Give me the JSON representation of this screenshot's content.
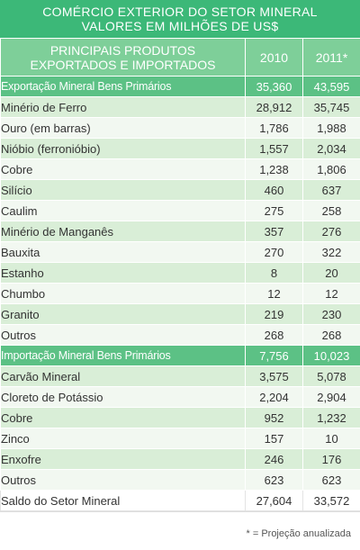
{
  "title": {
    "line1": "COMÉRCIO EXTERIOR DO SETOR MINERAL",
    "line2": "VALORES EM MILHÕES DE US$"
  },
  "header": {
    "product_line1": "PRINCIPAIS PRODUTOS",
    "product_line2": "EXPORTADOS E IMPORTADOS",
    "col1": "2010",
    "col2": "2011*"
  },
  "rows": [
    {
      "name": "Exportação Mineral Bens Primários",
      "v2010": "35,360",
      "v2011": "43,595",
      "kind": "section"
    },
    {
      "name": "Minério de Ferro",
      "v2010": "28,912",
      "v2011": "35,745",
      "kind": "mid"
    },
    {
      "name": "Ouro (em barras)",
      "v2010": "1,786",
      "v2011": "1,988",
      "kind": "light"
    },
    {
      "name": "Nióbio (ferronióbio)",
      "v2010": "1,557",
      "v2011": "2,034",
      "kind": "mid"
    },
    {
      "name": "Cobre",
      "v2010": "1,238",
      "v2011": "1,806",
      "kind": "light"
    },
    {
      "name": "Silício",
      "v2010": "460",
      "v2011": "637",
      "kind": "mid"
    },
    {
      "name": "Caulim",
      "v2010": "275",
      "v2011": "258",
      "kind": "light"
    },
    {
      "name": "Minério de Manganês",
      "v2010": "357",
      "v2011": "276",
      "kind": "mid"
    },
    {
      "name": "Bauxita",
      "v2010": "270",
      "v2011": "322",
      "kind": "light"
    },
    {
      "name": "Estanho",
      "v2010": "8",
      "v2011": "20",
      "kind": "mid"
    },
    {
      "name": "Chumbo",
      "v2010": "12",
      "v2011": "12",
      "kind": "light"
    },
    {
      "name": "Granito",
      "v2010": "219",
      "v2011": "230",
      "kind": "mid"
    },
    {
      "name": "Outros",
      "v2010": "268",
      "v2011": "268",
      "kind": "light"
    },
    {
      "name": "Importação Mineral Bens Primários",
      "v2010": "7,756",
      "v2011": "10,023",
      "kind": "section"
    },
    {
      "name": "Carvão Mineral",
      "v2010": "3,575",
      "v2011": "5,078",
      "kind": "mid"
    },
    {
      "name": "Cloreto de Potássio",
      "v2010": "2,204",
      "v2011": "2,904",
      "kind": "light"
    },
    {
      "name": "Cobre",
      "v2010": "952",
      "v2011": "1,232",
      "kind": "mid"
    },
    {
      "name": "Zinco",
      "v2010": "157",
      "v2011": "10",
      "kind": "light"
    },
    {
      "name": "Enxofre",
      "v2010": "246",
      "v2011": "176",
      "kind": "mid"
    },
    {
      "name": "Outros",
      "v2010": "623",
      "v2011": "623",
      "kind": "light"
    },
    {
      "name": "Saldo do Setor Mineral",
      "v2010": "27,604",
      "v2011": "33,572",
      "kind": "total"
    }
  ],
  "footnote": "* = Projeção anualizada",
  "colors": {
    "title_bg": "#3cb878",
    "header_bg": "#7ecf99",
    "section_bg": "#5cc185",
    "row_mid": "#d9eed7",
    "row_light": "#f2f8f1"
  }
}
